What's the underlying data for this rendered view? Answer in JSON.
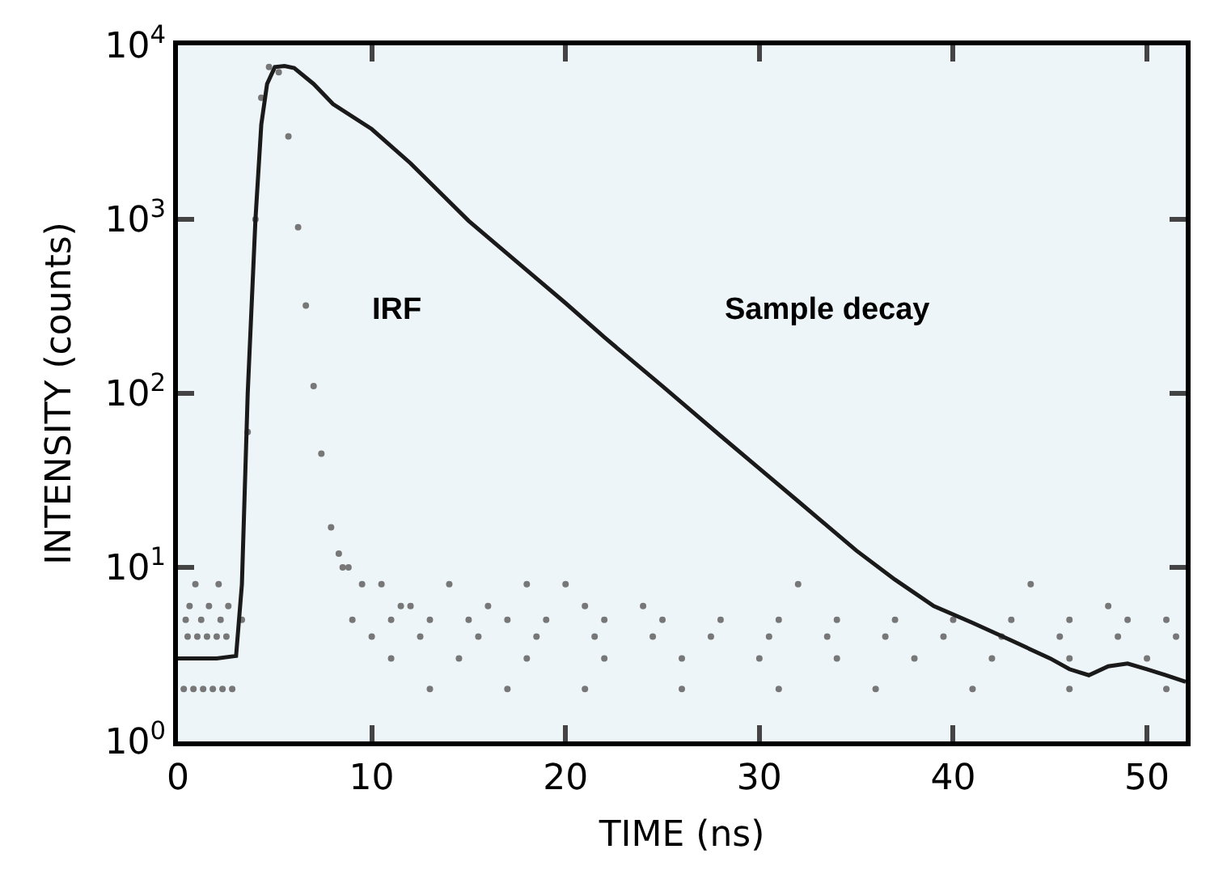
{
  "chart_data": {
    "type": "line",
    "xlabel": "TIME (ns)",
    "ylabel": "INTENSITY (counts)",
    "log": "y",
    "xlim": [
      0,
      52
    ],
    "xticks": [
      0,
      10,
      20,
      30,
      40,
      50
    ],
    "ylim": [
      1,
      10000
    ],
    "yticks": [
      {
        "value": 1,
        "label": "10$^{0}$"
      },
      {
        "value": 10,
        "label": "10$^{1}$"
      },
      {
        "value": 100,
        "label": "10$^{2}$"
      },
      {
        "value": 1000,
        "label": "10$^{3}$"
      },
      {
        "value": 10000,
        "label": "10$^{4}$"
      }
    ],
    "grid": false,
    "legend": false,
    "series": [
      {
        "type": "scatter",
        "marker": "circle",
        "color": "#777777",
        "x": [
          0.3,
          0.8,
          1.3,
          1.8,
          2.3,
          2.8,
          0.5,
          1.0,
          1.5,
          2.0,
          2.5,
          0.4,
          1.2,
          2.2,
          0.6,
          1.6,
          2.6,
          0.9,
          2.1,
          3.3,
          3.6,
          4.0,
          4.3,
          4.7,
          5.2,
          5.7,
          6.2,
          6.6,
          7.0,
          7.4,
          7.9,
          8.3,
          8.8,
          9.5,
          10.5,
          12,
          14,
          16,
          18,
          21,
          24,
          9,
          11,
          13,
          15,
          17,
          19,
          22,
          25,
          28,
          31,
          34,
          37,
          40,
          43,
          46,
          49,
          51,
          10,
          12.5,
          15.5,
          18.5,
          21.5,
          24.5,
          27.5,
          30.5,
          33.5,
          36.5,
          39.5,
          42.5,
          45.5,
          48.5,
          51.5,
          11,
          14.5,
          18,
          22,
          26,
          30,
          34,
          38,
          42,
          46,
          50,
          13,
          17,
          21,
          26,
          31,
          36,
          41,
          46,
          51,
          8.5,
          11.5,
          20,
          32,
          44,
          48
        ],
        "values": [
          2,
          2,
          2,
          2,
          2,
          2,
          4,
          4,
          4,
          4,
          4,
          5,
          5,
          5,
          6,
          6,
          6,
          8,
          8,
          5,
          60,
          1000,
          5000,
          7500,
          7000,
          3000,
          900,
          320,
          110,
          45,
          17,
          12,
          10,
          8,
          8,
          6,
          8,
          6,
          8,
          6,
          6,
          5,
          5,
          5,
          5,
          5,
          5,
          5,
          5,
          5,
          5,
          5,
          5,
          5,
          5,
          5,
          5,
          5,
          4,
          4,
          4,
          4,
          4,
          4,
          4,
          4,
          4,
          4,
          4,
          4,
          4,
          4,
          4,
          3,
          3,
          3,
          3,
          3,
          3,
          3,
          3,
          3,
          3,
          3,
          2,
          2,
          2,
          2,
          2,
          2,
          2,
          2,
          2,
          10,
          6,
          8,
          8,
          8,
          6
        ]
      },
      {
        "color": "#1a1a1a",
        "x": [
          0,
          1,
          2,
          3,
          3.3,
          3.6,
          4,
          4.3,
          4.6,
          5,
          5.5,
          6,
          7,
          8,
          10,
          12,
          15,
          18,
          20,
          22,
          25,
          28,
          30,
          32,
          35,
          37,
          39,
          41,
          43,
          45,
          46,
          47,
          48,
          49,
          50,
          51,
          52
        ],
        "values": [
          3,
          3,
          3,
          3.1,
          8,
          100,
          1000,
          3500,
          6000,
          7500,
          7600,
          7400,
          6000,
          4600,
          3300,
          2100,
          980,
          510,
          330,
          210,
          110,
          57,
          37,
          24,
          12.5,
          8.5,
          6,
          4.8,
          3.8,
          3,
          2.6,
          2.4,
          2.7,
          2.8,
          2.6,
          2.4,
          2.2
        ]
      }
    ],
    "annotations": [
      "IRF",
      "Sample decay"
    ]
  }
}
